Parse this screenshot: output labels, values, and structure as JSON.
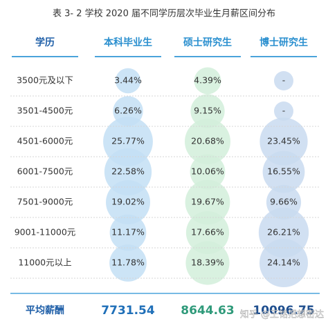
{
  "title": "表 3- 2 学校 2020 届不同学历层次毕业生月薪区间分布",
  "table": {
    "header": [
      "学历",
      "本科毕业生",
      "硕士研究生",
      "博士研究生"
    ],
    "rows": [
      [
        "3500元及以下",
        "3.44%",
        "4.39%",
        "-"
      ],
      [
        "3501-4500元",
        "6.26%",
        "9.15%",
        "-"
      ],
      [
        "4501-6000元",
        "25.77%",
        "20.68%",
        "23.45%"
      ],
      [
        "6001-7500元",
        "22.58%",
        "10.06%",
        "16.55%"
      ],
      [
        "7501-9000元",
        "19.02%",
        "19.67%",
        "9.66%"
      ],
      [
        "9001-11000元",
        "11.17%",
        "17.66%",
        "26.21%"
      ],
      [
        "11000元以上",
        "11.78%",
        "18.39%",
        "24.14%"
      ]
    ],
    "footer": [
      "平均薪酬",
      "7731.54",
      "8644.63",
      "10096.75"
    ]
  },
  "watermark": "知乎 @王铭把想密达"
}
